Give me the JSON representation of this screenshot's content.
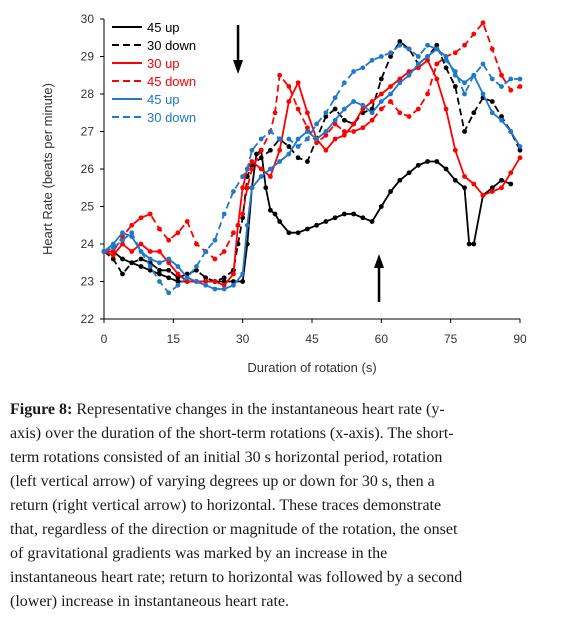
{
  "chart_data": {
    "type": "line",
    "xlabel": "Duration of rotation (s)",
    "ylabel": "Heart Rate (beats per minute)",
    "xlim": [
      0,
      90
    ],
    "ylim": [
      22,
      30
    ],
    "xticks": [
      0,
      15,
      30,
      45,
      60,
      75,
      90
    ],
    "yticks": [
      22,
      23,
      24,
      25,
      26,
      27,
      28,
      29,
      30
    ],
    "grid": false,
    "legend_position": "top-left",
    "annotations": [
      {
        "type": "arrow-down",
        "x": 29,
        "description": "rotation"
      },
      {
        "type": "arrow-up",
        "x": 59.5,
        "description": "return"
      }
    ],
    "series": [
      {
        "name": "45 up",
        "color": "#000000",
        "dash": "solid",
        "markers": true,
        "x": [
          0,
          2,
          4,
          6,
          8,
          10,
          12,
          14,
          16,
          18,
          20,
          22,
          24,
          26,
          28,
          30,
          31,
          32,
          33,
          34,
          35,
          36,
          37,
          38,
          40,
          42,
          44,
          46,
          48,
          50,
          52,
          54,
          56,
          58,
          60,
          62,
          64,
          66,
          68,
          70,
          72,
          74,
          76,
          78,
          79,
          80,
          82,
          84,
          86,
          88
        ],
        "y": [
          23.8,
          23.8,
          23.6,
          23.5,
          23.4,
          23.3,
          23.2,
          23.1,
          23.0,
          23.0,
          23.0,
          23.0,
          23.0,
          23.0,
          23.0,
          23.0,
          24.0,
          25.5,
          26.4,
          26.5,
          25.5,
          24.9,
          24.8,
          24.6,
          24.3,
          24.3,
          24.4,
          24.5,
          24.6,
          24.7,
          24.8,
          24.8,
          24.7,
          24.6,
          25.0,
          25.4,
          25.7,
          25.9,
          26.1,
          26.2,
          26.2,
          26.0,
          25.7,
          25.5,
          24.0,
          24.0,
          25.3,
          25.5,
          25.7,
          25.6
        ]
      },
      {
        "name": "30 down",
        "color": "#000000",
        "dash": "dashed",
        "markers": true,
        "x": [
          0,
          2,
          4,
          6,
          8,
          10,
          12,
          14,
          16,
          18,
          20,
          22,
          24,
          26,
          28,
          29,
          30,
          31,
          32,
          34,
          36,
          38,
          40,
          42,
          44,
          46,
          48,
          50,
          52,
          54,
          56,
          58,
          60,
          62,
          64,
          66,
          68,
          70,
          72,
          74,
          76,
          78,
          80,
          82,
          84,
          86,
          88,
          90
        ],
        "y": [
          23.8,
          23.6,
          23.2,
          23.5,
          23.6,
          23.5,
          23.3,
          23.3,
          23.1,
          23.2,
          23.3,
          23.1,
          23.0,
          23.1,
          23.3,
          24.0,
          24.7,
          25.8,
          26.1,
          26.3,
          26.5,
          26.8,
          26.6,
          26.3,
          26.2,
          26.8,
          27.4,
          27.6,
          27.3,
          27.2,
          27.5,
          27.6,
          28.4,
          29.0,
          29.4,
          29.2,
          28.8,
          29.0,
          29.3,
          28.7,
          28.2,
          27.0,
          27.5,
          27.9,
          27.8,
          27.4,
          27.0,
          26.5
        ]
      },
      {
        "name": "30 up",
        "color": "#ff0000",
        "dash": "solid",
        "markers": true,
        "x": [
          0,
          2,
          4,
          6,
          8,
          10,
          12,
          14,
          16,
          18,
          20,
          22,
          24,
          26,
          28,
          29,
          30,
          31,
          32,
          34,
          36,
          38,
          40,
          42,
          44,
          46,
          48,
          50,
          52,
          54,
          56,
          58,
          60,
          62,
          64,
          66,
          68,
          70,
          72,
          74,
          76,
          78,
          80,
          82,
          84,
          86,
          88,
          90
        ],
        "y": [
          23.8,
          23.7,
          24.0,
          23.8,
          24.0,
          23.8,
          23.8,
          23.5,
          23.2,
          23.0,
          23.0,
          23.0,
          23.0,
          22.9,
          23.2,
          24.5,
          25.5,
          26.0,
          26.2,
          26.0,
          25.8,
          26.5,
          27.8,
          28.3,
          27.5,
          26.8,
          26.5,
          26.8,
          26.9,
          27.2,
          27.6,
          27.8,
          28.0,
          28.2,
          28.4,
          28.6,
          28.7,
          28.9,
          28.4,
          27.6,
          26.5,
          25.8,
          25.6,
          25.3,
          25.4,
          25.5,
          25.9,
          26.3
        ]
      },
      {
        "name": "45 down",
        "color": "#ff0000",
        "dash": "dashed",
        "markers": true,
        "x": [
          0,
          2,
          4,
          6,
          8,
          10,
          12,
          14,
          16,
          18,
          20,
          22,
          24,
          26,
          28,
          30,
          31,
          32,
          34,
          36,
          37,
          38,
          40,
          42,
          44,
          46,
          48,
          50,
          52,
          54,
          56,
          58,
          60,
          62,
          64,
          66,
          68,
          70,
          72,
          74,
          76,
          78,
          80,
          82,
          84,
          86,
          88,
          90
        ],
        "y": [
          23.8,
          23.8,
          24.2,
          24.5,
          24.7,
          24.8,
          24.4,
          24.1,
          24.3,
          24.6,
          24.0,
          23.8,
          23.6,
          23.8,
          24.3,
          24.8,
          25.5,
          26.0,
          26.5,
          27.0,
          27.5,
          28.5,
          28.2,
          27.6,
          27.1,
          26.7,
          26.9,
          27.2,
          27.0,
          27.0,
          27.1,
          27.3,
          27.6,
          27.8,
          27.5,
          27.4,
          27.6,
          28.0,
          28.8,
          29.0,
          29.1,
          29.3,
          29.6,
          29.9,
          29.2,
          28.5,
          28.1,
          28.2
        ]
      },
      {
        "name": "45 up",
        "color": "#1f78c8",
        "dash": "solid",
        "markers": true,
        "x": [
          0,
          2,
          4,
          6,
          8,
          10,
          12,
          14,
          16,
          18,
          20,
          22,
          24,
          26,
          28,
          30,
          31,
          32,
          34,
          36,
          38,
          40,
          42,
          44,
          46,
          48,
          50,
          52,
          54,
          56,
          58,
          60,
          62,
          64,
          66,
          68,
          70,
          72,
          74,
          76,
          78,
          80,
          82,
          84,
          86,
          88,
          90
        ],
        "y": [
          23.8,
          24.0,
          24.3,
          24.2,
          23.8,
          23.6,
          23.5,
          23.6,
          23.4,
          23.1,
          23.0,
          22.9,
          22.8,
          22.8,
          22.9,
          23.2,
          24.5,
          25.5,
          25.8,
          26.0,
          26.2,
          26.4,
          26.8,
          27.0,
          26.8,
          27.0,
          27.3,
          27.6,
          27.8,
          27.7,
          27.5,
          27.8,
          28.0,
          28.3,
          28.5,
          28.8,
          29.0,
          29.2,
          29.0,
          28.5,
          28.3,
          28.5,
          28.0,
          27.5,
          27.3,
          27.0,
          26.6
        ]
      },
      {
        "name": "30 down",
        "color": "#1f78c8",
        "dash": "dashed",
        "markers": true,
        "x": [
          0,
          2,
          4,
          6,
          8,
          10,
          12,
          14,
          16,
          18,
          20,
          22,
          24,
          26,
          28,
          30,
          31,
          32,
          34,
          36,
          38,
          40,
          42,
          44,
          46,
          48,
          50,
          52,
          54,
          56,
          58,
          60,
          62,
          64,
          66,
          68,
          70,
          72,
          74,
          76,
          78,
          80,
          82,
          84,
          86,
          88,
          90
        ],
        "y": [
          23.8,
          23.9,
          24.1,
          24.3,
          23.8,
          23.4,
          23.0,
          22.7,
          22.9,
          23.1,
          23.4,
          23.8,
          24.1,
          24.8,
          25.4,
          25.8,
          26.0,
          26.5,
          26.8,
          27.0,
          26.8,
          26.8,
          26.6,
          26.8,
          27.2,
          27.5,
          27.9,
          28.3,
          28.6,
          28.7,
          28.9,
          29.0,
          29.1,
          29.3,
          29.2,
          29.0,
          29.3,
          29.2,
          28.9,
          28.6,
          28.0,
          28.5,
          28.8,
          28.4,
          28.2,
          28.4,
          28.4
        ]
      }
    ]
  },
  "caption": {
    "label": "Figure 8:",
    "lines": [
      "Representative changes in the instantaneous heart rate (y-",
      "axis) over the duration of the short-term rotations (x-axis). The short-",
      "term rotations consisted of an initial 30 s horizontal period, rotation",
      "(left vertical arrow) of varying degrees up or down for 30 s, then a",
      "return (right vertical arrow) to horizontal. These traces demonstrate",
      "that, regardless of the direction or magnitude of the rotation, the onset",
      "of gravitational gradients was marked by an increase in the",
      "instantaneous heart rate; return to horizontal was followed by a second",
      "(lower) increase in instantaneous heart rate."
    ]
  }
}
